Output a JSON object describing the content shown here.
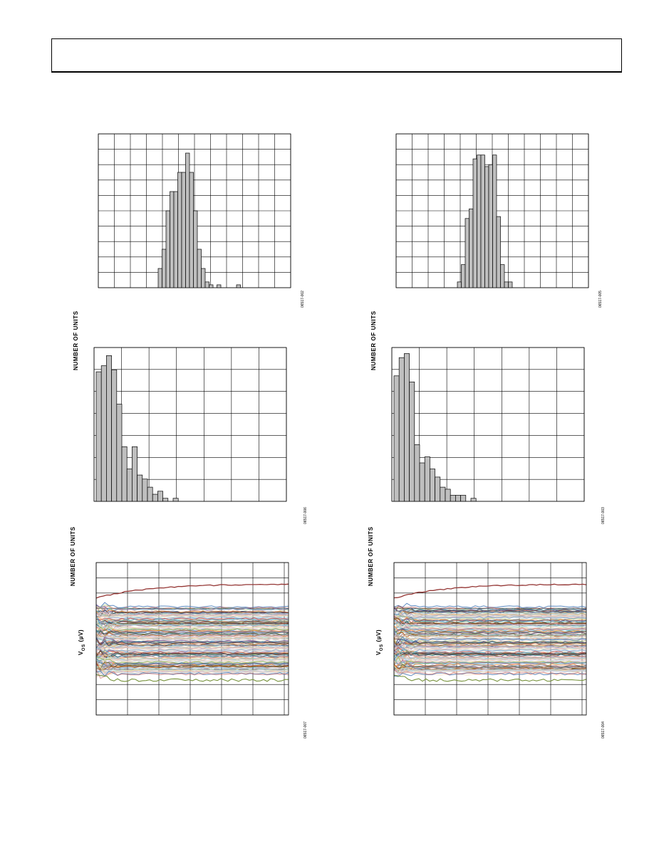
{
  "chart_data": [
    {
      "type": "bar",
      "ylabel": "NUMBER OF UNITS",
      "figure_id": "06517-002",
      "values": [
        1,
        2,
        4,
        5,
        5,
        6,
        6,
        7,
        6,
        4,
        2,
        1,
        0.3,
        0.15,
        0,
        0.15,
        0,
        0,
        0,
        0,
        0.15,
        0,
        0,
        0,
        0,
        0,
        0,
        0,
        0,
        0,
        0,
        0,
        0
      ]
    },
    {
      "type": "bar",
      "ylabel": "NUMBER OF UNITS",
      "figure_id": "06517-005",
      "values": [
        0.3,
        1.2,
        3.6,
        4.1,
        6.7,
        6.9,
        6.9,
        6.3,
        6.4,
        6.9,
        3.7,
        1.2,
        0.3,
        0.3,
        0,
        0,
        0,
        0,
        0,
        0,
        0,
        0,
        0,
        0,
        0,
        0,
        0,
        0,
        0,
        0,
        0,
        0,
        0
      ]
    },
    {
      "type": "bar",
      "ylabel": "NUMBER OF UNITS",
      "figure_id": "06517-006",
      "values": [
        6.4,
        6.7,
        7.2,
        6.5,
        4.8,
        2.7,
        1.6,
        2.7,
        1.3,
        1.1,
        0.7,
        0.35,
        0.5,
        0.15,
        0,
        0.15,
        0,
        0,
        0,
        0,
        0,
        0,
        0,
        0,
        0,
        0,
        0,
        0,
        0,
        0,
        0,
        0,
        0,
        0,
        0,
        0,
        0
      ]
    },
    {
      "type": "bar",
      "ylabel": "NUMBER OF UNITS",
      "figure_id": "06517-003",
      "values": [
        6.2,
        7.1,
        7.3,
        5.9,
        2.8,
        1.9,
        2.2,
        1.6,
        1.2,
        0.7,
        0.6,
        0.3,
        0.3,
        0.3,
        0,
        0.15,
        0,
        0,
        0,
        0,
        0,
        0,
        0,
        0,
        0,
        0,
        0,
        0,
        0,
        0,
        0,
        0,
        0,
        0,
        0,
        0,
        0
      ]
    },
    {
      "type": "line",
      "ylabel": "V",
      "ylabel_sub": "OS",
      "ylabel_unit": " (µV)",
      "figure_id": "06517-007"
    },
    {
      "type": "line",
      "ylabel": "V",
      "ylabel_sub": "OS",
      "ylabel_unit": " (µV)",
      "figure_id": "06517-004"
    }
  ]
}
